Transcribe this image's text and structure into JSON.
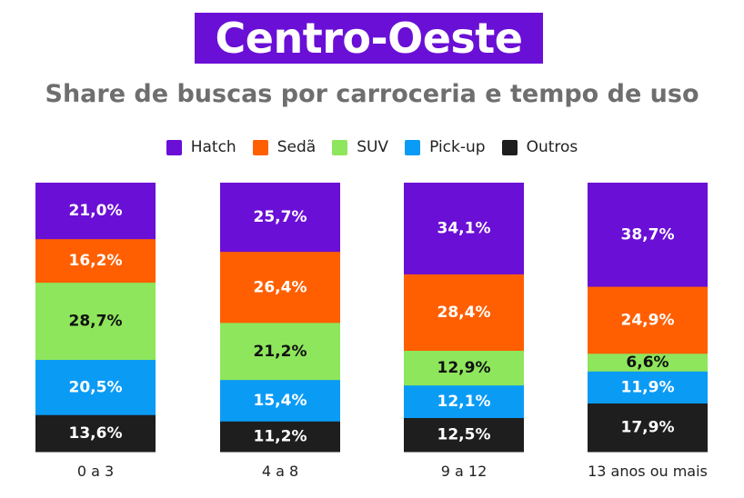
{
  "title": "Centro-Oeste",
  "subtitle": "Share de buscas por carroceria e tempo de uso",
  "chart_data": {
    "type": "bar",
    "stacked": true,
    "normalized_percent": true,
    "title": "Centro-Oeste",
    "subtitle": "Share de buscas por carroceria e tempo de uso",
    "xlabel": "",
    "ylabel": "",
    "ylim": [
      0,
      100
    ],
    "grid": false,
    "legend_position": "top-center",
    "categories": [
      "0 a 3",
      "4 a 8",
      "9 a 12",
      "13 anos ou mais"
    ],
    "series": [
      {
        "name": "Hatch",
        "color": "#6a0fd6",
        "label_color": "#ffffff",
        "values": [
          21.0,
          25.7,
          34.1,
          38.7
        ],
        "labels": [
          "21,0%",
          "25,7%",
          "34,1%",
          "38,7%"
        ]
      },
      {
        "name": "Sedã",
        "color": "#ff5f00",
        "label_color": "#ffffff",
        "values": [
          16.2,
          26.4,
          28.4,
          24.9
        ],
        "labels": [
          "16,2%",
          "26,4%",
          "28,4%",
          "24,9%"
        ]
      },
      {
        "name": "SUV",
        "color": "#8ee65c",
        "label_color": "#111111",
        "values": [
          28.7,
          21.2,
          12.9,
          6.6
        ],
        "labels": [
          "28,7%",
          "21,2%",
          "12,9%",
          "6,6%"
        ]
      },
      {
        "name": "Pick-up",
        "color": "#0a9bf5",
        "label_color": "#ffffff",
        "values": [
          20.5,
          15.4,
          12.1,
          11.9
        ],
        "labels": [
          "20,5%",
          "15,4%",
          "12,1%",
          "11,9%"
        ]
      },
      {
        "name": "Outros",
        "color": "#1e1e1e",
        "label_color": "#ffffff",
        "values": [
          13.6,
          11.2,
          12.5,
          17.9
        ],
        "labels": [
          "13,6%",
          "11,2%",
          "12,5%",
          "17,9%"
        ]
      }
    ]
  }
}
